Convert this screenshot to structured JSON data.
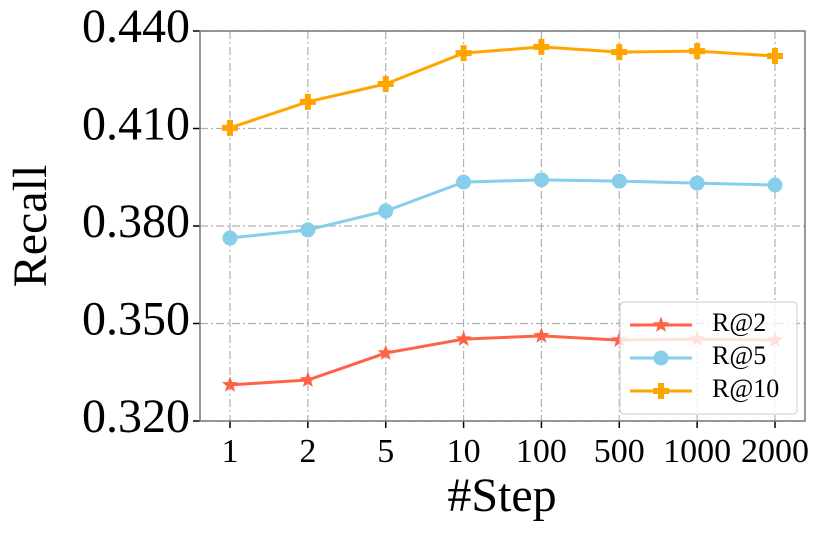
{
  "chart_data": {
    "type": "line",
    "x_label": "#Step",
    "y_label": "Recall",
    "categories": [
      "1",
      "2",
      "5",
      "10",
      "100",
      "500",
      "1000",
      "2000"
    ],
    "series": [
      {
        "name": "R@2",
        "color": "#ff6347",
        "marker": "star",
        "values": [
          0.3311,
          0.3326,
          0.3409,
          0.3452,
          0.3462,
          0.3449,
          0.3452,
          0.3449
        ]
      },
      {
        "name": "R@5",
        "color": "#87ceeb",
        "marker": "circle",
        "values": [
          0.3763,
          0.3788,
          0.3846,
          0.3935,
          0.3942,
          0.3938,
          0.3932,
          0.3926
        ]
      },
      {
        "name": "R@10",
        "color": "#ffa500",
        "marker": "plus",
        "values": [
          0.4102,
          0.4182,
          0.4237,
          0.4332,
          0.4351,
          0.4335,
          0.4338,
          0.4323
        ]
      }
    ],
    "ylim": [
      0.32,
      0.44
    ],
    "yticks": [
      {
        "value": 0.32,
        "label": "0.320"
      },
      {
        "value": 0.35,
        "label": "0.350"
      },
      {
        "value": 0.38,
        "label": "0.380"
      },
      {
        "value": 0.41,
        "label": "0.410"
      },
      {
        "value": 0.44,
        "label": "0.440"
      }
    ],
    "grid": true,
    "legend": "lower right"
  }
}
